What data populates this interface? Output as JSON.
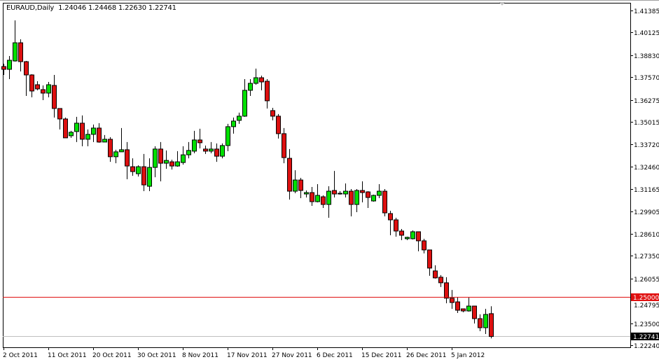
{
  "header": {
    "symbol_timeframe": "EURAUD,Daily",
    "ohlc": "1.24046 1.24468 1.22630 1.22741"
  },
  "colors": {
    "bull": "#00e000",
    "bear": "#dd1010",
    "outline": "#000000",
    "level_line": "#e01010",
    "bid_line": "#c0c0c0"
  },
  "chart_data": {
    "type": "candlestick",
    "title": "EURAUD,Daily",
    "ylim": [
      1.2224,
      1.41385
    ],
    "grid": false,
    "y_ticks": [
      "1.41385",
      "1.40125",
      "1.38830",
      "1.37570",
      "1.36275",
      "1.35015",
      "1.33720",
      "1.32460",
      "1.31165",
      "1.29905",
      "1.28610",
      "1.27350",
      "1.26055",
      "1.24795",
      "1.23500",
      "1.22240"
    ],
    "x_tick_labels": [
      {
        "label": "2 Oct 2011",
        "index": 0
      },
      {
        "label": "11 Oct 2011",
        "index": 8
      },
      {
        "label": "20 Oct 2011",
        "index": 16
      },
      {
        "label": "30 Oct 2011",
        "index": 24
      },
      {
        "label": "8 Nov 2011",
        "index": 32
      },
      {
        "label": "17 Nov 2011",
        "index": 40
      },
      {
        "label": "27 Nov 2011",
        "index": 48
      },
      {
        "label": "6 Dec 2011",
        "index": 56
      },
      {
        "label": "15 Dec 2011",
        "index": 64
      },
      {
        "label": "26 Dec 2011",
        "index": 72
      },
      {
        "label": "5 Jan 2012",
        "index": 80
      }
    ],
    "horizontal_level": {
      "value": 1.25,
      "label": "1.25000"
    },
    "current_price": {
      "value": 1.22741,
      "label": "1.22741"
    },
    "ohlc": [
      [
        1.3818,
        1.3834,
        1.377,
        1.3802
      ],
      [
        1.3802,
        1.3878,
        1.3746,
        1.3854
      ],
      [
        1.385,
        1.4082,
        1.3846,
        1.3954
      ],
      [
        1.3954,
        1.3974,
        1.379,
        1.3846
      ],
      [
        1.3846,
        1.385,
        1.365,
        1.377
      ],
      [
        1.377,
        1.3774,
        1.3642,
        1.3678
      ],
      [
        1.3714,
        1.3734,
        1.3682,
        1.369
      ],
      [
        1.3686,
        1.371,
        1.3626,
        1.3666
      ],
      [
        1.3666,
        1.373,
        1.3642,
        1.3714
      ],
      [
        1.371,
        1.377,
        1.3526,
        1.3578
      ],
      [
        1.3578,
        1.3578,
        1.3458,
        1.3518
      ],
      [
        1.3518,
        1.3526,
        1.341,
        1.341
      ],
      [
        1.3422,
        1.345,
        1.341,
        1.3442
      ],
      [
        1.3446,
        1.353,
        1.3386,
        1.3494
      ],
      [
        1.3494,
        1.3538,
        1.3362,
        1.3402
      ],
      [
        1.3402,
        1.3458,
        1.3362,
        1.343
      ],
      [
        1.343,
        1.3486,
        1.3386,
        1.3466
      ],
      [
        1.3466,
        1.3494,
        1.3382,
        1.3386
      ],
      [
        1.3386,
        1.3426,
        1.3386,
        1.3402
      ],
      [
        1.3402,
        1.3414,
        1.3273,
        1.3302
      ],
      [
        1.3302,
        1.3342,
        1.3265,
        1.333
      ],
      [
        1.333,
        1.3466,
        1.333,
        1.3342
      ],
      [
        1.3342,
        1.3386,
        1.3173,
        1.3249
      ],
      [
        1.3245,
        1.3293,
        1.3193,
        1.3217
      ],
      [
        1.3205,
        1.3253,
        1.3189,
        1.3245
      ],
      [
        1.3245,
        1.3318,
        1.3105,
        1.3141
      ],
      [
        1.3133,
        1.3293,
        1.3105,
        1.3241
      ],
      [
        1.3241,
        1.3362,
        1.3185,
        1.3346
      ],
      [
        1.3346,
        1.3386,
        1.3161,
        1.3265
      ],
      [
        1.3265,
        1.3338,
        1.3233,
        1.3281
      ],
      [
        1.3273,
        1.3285,
        1.3229,
        1.3249
      ],
      [
        1.3249,
        1.3334,
        1.3245,
        1.3273
      ],
      [
        1.3269,
        1.3362,
        1.3257,
        1.3313
      ],
      [
        1.3313,
        1.3386,
        1.3293,
        1.3338
      ],
      [
        1.3334,
        1.345,
        1.3322,
        1.3398
      ],
      [
        1.3398,
        1.3462,
        1.335,
        1.3382
      ],
      [
        1.3346,
        1.3366,
        1.3318,
        1.3334
      ],
      [
        1.3334,
        1.3386,
        1.3322,
        1.3346
      ],
      [
        1.3346,
        1.3378,
        1.3273,
        1.3305
      ],
      [
        1.3305,
        1.3378,
        1.3293,
        1.3366
      ],
      [
        1.3366,
        1.349,
        1.3334,
        1.3474
      ],
      [
        1.3474,
        1.3526,
        1.3434,
        1.3506
      ],
      [
        1.351,
        1.3554,
        1.349,
        1.3534
      ],
      [
        1.3534,
        1.3746,
        1.353,
        1.3682
      ],
      [
        1.3682,
        1.3746,
        1.365,
        1.3722
      ],
      [
        1.3722,
        1.3806,
        1.3714,
        1.3754
      ],
      [
        1.3754,
        1.3766,
        1.3682,
        1.373
      ],
      [
        1.3734,
        1.3746,
        1.3578,
        1.3622
      ],
      [
        1.3566,
        1.3582,
        1.351,
        1.3534
      ],
      [
        1.3534,
        1.3546,
        1.3406,
        1.3434
      ],
      [
        1.3434,
        1.3466,
        1.3265,
        1.3297
      ],
      [
        1.3293,
        1.3346,
        1.3057,
        1.3105
      ],
      [
        1.3105,
        1.3225,
        1.3093,
        1.3169
      ],
      [
        1.3169,
        1.3181,
        1.3065,
        1.3109
      ],
      [
        1.3089,
        1.3109,
        1.3069,
        1.3097
      ],
      [
        1.3097,
        1.3129,
        1.3021,
        1.3045
      ],
      [
        1.3045,
        1.3145,
        1.3041,
        1.3081
      ],
      [
        1.3073,
        1.3081,
        1.3009,
        1.3029
      ],
      [
        1.3029,
        1.3133,
        1.2953,
        1.3105
      ],
      [
        1.3109,
        1.3221,
        1.3069,
        1.3089
      ],
      [
        1.3093,
        1.3105,
        1.3085,
        1.3093
      ],
      [
        1.3089,
        1.3149,
        1.3069,
        1.3105
      ],
      [
        1.3105,
        1.3117,
        1.2961,
        1.3029
      ],
      [
        1.3029,
        1.3117,
        1.2985,
        1.3109
      ],
      [
        1.3109,
        1.3161,
        1.3041,
        1.3097
      ],
      [
        1.3101,
        1.3105,
        1.3009,
        1.3069
      ],
      [
        1.3049,
        1.3085,
        1.3045,
        1.3081
      ],
      [
        1.3081,
        1.3145,
        1.3065,
        1.3105
      ],
      [
        1.3105,
        1.3117,
        1.2961,
        1.2981
      ],
      [
        1.2977,
        1.2993,
        1.2853,
        1.2941
      ],
      [
        1.2941,
        1.2953,
        1.2845,
        1.2877
      ],
      [
        1.2877,
        1.2889,
        1.2825,
        1.2853
      ],
      [
        1.2833,
        1.2845,
        1.2825,
        1.2841
      ],
      [
        1.2833,
        1.2881,
        1.2829,
        1.2873
      ],
      [
        1.2873,
        1.2873,
        1.2761,
        1.2821
      ],
      [
        1.2821,
        1.2833,
        1.2749,
        1.2769
      ],
      [
        1.2769,
        1.2769,
        1.2621,
        1.2665
      ],
      [
        1.2649,
        1.2681,
        1.2605,
        1.2609
      ],
      [
        1.2613,
        1.2625,
        1.2557,
        1.2581
      ],
      [
        1.2581,
        1.2613,
        1.2464,
        1.2493
      ],
      [
        1.2493,
        1.254,
        1.2432,
        1.2468
      ],
      [
        1.2472,
        1.25,
        1.2408,
        1.2424
      ],
      [
        1.2432,
        1.2432,
        1.2412,
        1.242
      ],
      [
        1.242,
        1.2496,
        1.2416,
        1.2448
      ],
      [
        1.2448,
        1.2448,
        1.2348,
        1.2376
      ],
      [
        1.2376,
        1.24,
        1.2304,
        1.2324
      ],
      [
        1.2324,
        1.2432,
        1.2288,
        1.24
      ],
      [
        1.24046,
        1.24468,
        1.2263,
        1.22741
      ]
    ]
  }
}
